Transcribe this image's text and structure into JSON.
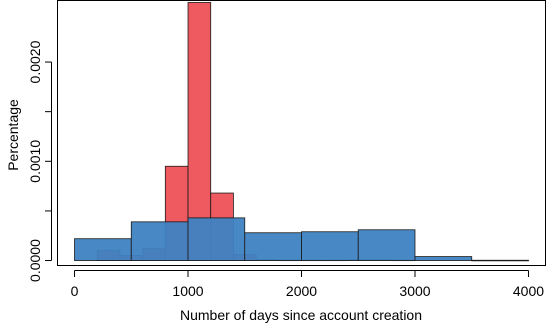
{
  "chart_data": {
    "type": "bar",
    "title": "",
    "xlabel": "Number of days since account creation",
    "ylabel": "Percentage",
    "xlim": [
      -150,
      4150
    ],
    "ylim": [
      -5e-05,
      0.00262
    ],
    "x_ticks": [
      {
        "value": 0,
        "label": "0"
      },
      {
        "value": 1000,
        "label": "1000"
      },
      {
        "value": 2000,
        "label": "2000"
      },
      {
        "value": 3000,
        "label": "3000"
      },
      {
        "value": 4000,
        "label": "4000"
      }
    ],
    "y_ticks": [
      {
        "value": 0,
        "label": "0.0000"
      },
      {
        "value": 0.0005,
        "label": ""
      },
      {
        "value": 0.001,
        "label": "0.0010"
      },
      {
        "value": 0.0015,
        "label": ""
      },
      {
        "value": 0.002,
        "label": "0.0020"
      }
    ],
    "grid": false,
    "legend": "none",
    "series": [
      {
        "color": "#ee5a5f",
        "bins": [
          {
            "x0": 200,
            "x1": 400,
            "value": 0.0001
          },
          {
            "x0": 400,
            "x1": 600,
            "value": 5e-05
          },
          {
            "x0": 600,
            "x1": 800,
            "value": 0.00012
          },
          {
            "x0": 800,
            "x1": 1000,
            "value": 0.00095
          },
          {
            "x0": 1000,
            "x1": 1200,
            "value": 0.0026
          },
          {
            "x0": 1200,
            "x1": 1400,
            "value": 0.00068
          },
          {
            "x0": 1400,
            "x1": 1600,
            "value": 6e-05
          },
          {
            "x0": 1600,
            "x1": 1800,
            "value": 1e-05
          },
          {
            "x0": 1800,
            "x1": 2000,
            "value": 5e-06
          },
          {
            "x0": 2000,
            "x1": 2200,
            "value": 5e-06
          },
          {
            "x0": 2200,
            "x1": 2400,
            "value": 5e-06
          },
          {
            "x0": 2400,
            "x1": 2600,
            "value": 1e-05
          },
          {
            "x0": 2600,
            "x1": 2800,
            "value": 1e-05
          },
          {
            "x0": 2800,
            "x1": 3000,
            "value": 5e-06
          }
        ]
      },
      {
        "color": "#3e82c2",
        "bins": [
          {
            "x0": 0,
            "x1": 500,
            "value": 0.00022
          },
          {
            "x0": 500,
            "x1": 1000,
            "value": 0.00039
          },
          {
            "x0": 1000,
            "x1": 1500,
            "value": 0.00043
          },
          {
            "x0": 1500,
            "x1": 2000,
            "value": 0.00028
          },
          {
            "x0": 2000,
            "x1": 2500,
            "value": 0.00029
          },
          {
            "x0": 2500,
            "x1": 3000,
            "value": 0.00031
          },
          {
            "x0": 3000,
            "x1": 3500,
            "value": 4e-05
          },
          {
            "x0": 3500,
            "x1": 4000,
            "value": 3e-06
          }
        ]
      }
    ]
  }
}
